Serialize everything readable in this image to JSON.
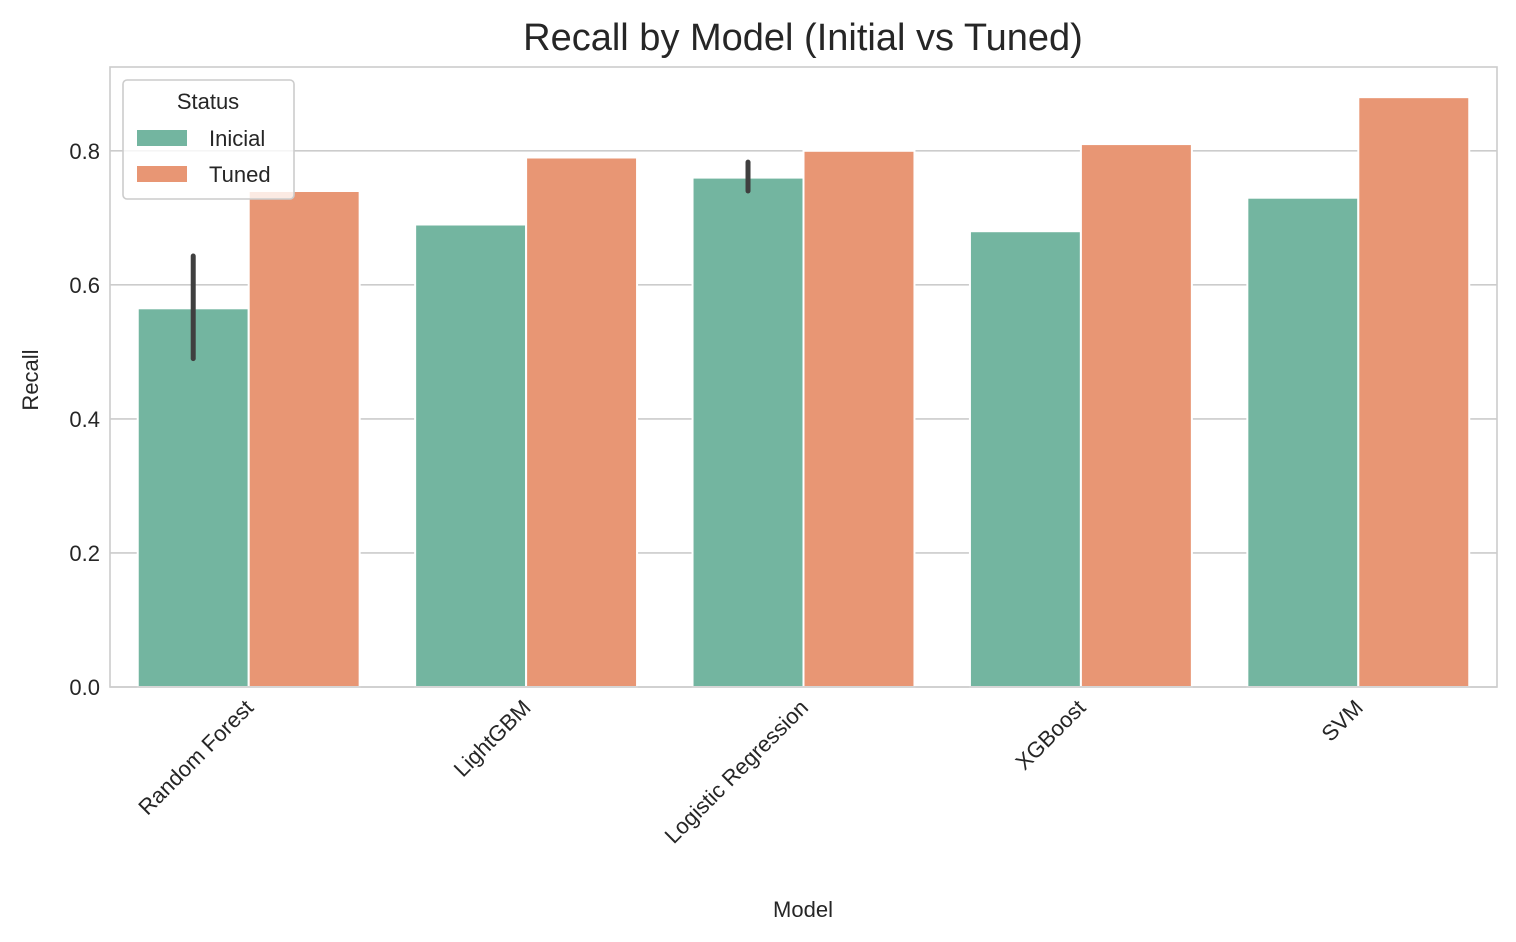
{
  "chart_data": {
    "type": "bar",
    "title": "Recall by Model (Initial vs Tuned)",
    "xlabel": "Model",
    "ylabel": "Recall",
    "categories": [
      "Random Forest",
      "LightGBM",
      "Logistic Regression",
      "XGBoost",
      "SVM"
    ],
    "ylim": [
      0,
      0.925
    ],
    "yticks": [
      0.0,
      0.2,
      0.4,
      0.6,
      0.8
    ],
    "ytick_labels": [
      "0.0",
      "0.2",
      "0.4",
      "0.6",
      "0.8"
    ],
    "grid": true,
    "legend": {
      "title": "Status",
      "placement": "top-left"
    },
    "series": [
      {
        "name": "Inicial",
        "color": "#73b5a0",
        "values": [
          0.565,
          0.69,
          0.76,
          0.68,
          0.73
        ],
        "error_bars": [
          [
            0.49,
            0.643
          ],
          null,
          [
            0.74,
            0.783
          ],
          null,
          null
        ]
      },
      {
        "name": "Tuned",
        "color": "#e89674",
        "values": [
          0.74,
          0.79,
          0.8,
          0.81,
          0.88
        ],
        "error_bars": [
          null,
          null,
          null,
          null,
          null
        ]
      }
    ]
  }
}
